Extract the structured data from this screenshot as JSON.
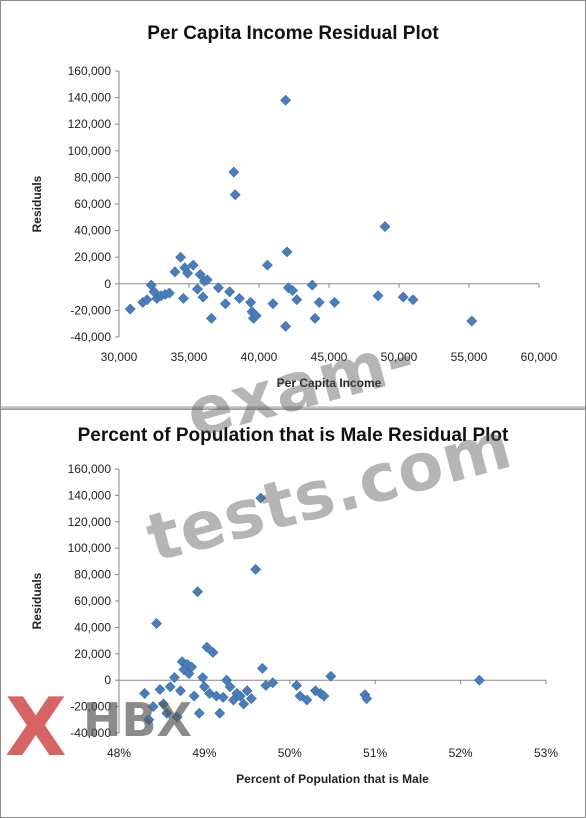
{
  "chart_data": [
    {
      "type": "scatter",
      "title": "Per Capita Income Residual Plot",
      "xlabel": "Per Capita Income",
      "ylabel": "Residuals",
      "xlim": [
        30000,
        60000
      ],
      "ylim": [
        -40000,
        160000
      ],
      "x_ticks": [
        "30,000",
        "35,000",
        "40,000",
        "45,000",
        "50,000",
        "55,000",
        "60,000"
      ],
      "y_ticks": [
        "160,000",
        "140,000",
        "120,000",
        "100,000",
        "80,000",
        "60,000",
        "40,000",
        "20,000",
        "0",
        "-20,000",
        "-40,000"
      ],
      "marker_color": "#4a7ebb",
      "grid": false,
      "points": [
        {
          "x": 30800,
          "y": -19000
        },
        {
          "x": 31700,
          "y": -14000
        },
        {
          "x": 32000,
          "y": -12000
        },
        {
          "x": 32300,
          "y": -1000
        },
        {
          "x": 32500,
          "y": -6000
        },
        {
          "x": 32700,
          "y": -11000
        },
        {
          "x": 33000,
          "y": -9000
        },
        {
          "x": 33300,
          "y": -8000
        },
        {
          "x": 33600,
          "y": -7000
        },
        {
          "x": 34000,
          "y": 9000
        },
        {
          "x": 34400,
          "y": 20000
        },
        {
          "x": 34600,
          "y": -11000
        },
        {
          "x": 34700,
          "y": 12000
        },
        {
          "x": 34900,
          "y": 8000
        },
        {
          "x": 35300,
          "y": 14000
        },
        {
          "x": 35600,
          "y": -4000
        },
        {
          "x": 35800,
          "y": 7000
        },
        {
          "x": 36000,
          "y": -10000
        },
        {
          "x": 36100,
          "y": 2000
        },
        {
          "x": 36300,
          "y": 3000
        },
        {
          "x": 36600,
          "y": -26000
        },
        {
          "x": 37100,
          "y": -3000
        },
        {
          "x": 37600,
          "y": -15000
        },
        {
          "x": 37900,
          "y": -6000
        },
        {
          "x": 38200,
          "y": 84000
        },
        {
          "x": 38300,
          "y": 67000
        },
        {
          "x": 38600,
          "y": -11000
        },
        {
          "x": 39400,
          "y": -14000
        },
        {
          "x": 39500,
          "y": -21000
        },
        {
          "x": 39600,
          "y": -26000
        },
        {
          "x": 39800,
          "y": -24000
        },
        {
          "x": 40600,
          "y": 14000
        },
        {
          "x": 41000,
          "y": -15000
        },
        {
          "x": 41900,
          "y": 138000
        },
        {
          "x": 42000,
          "y": 24000
        },
        {
          "x": 42100,
          "y": -3000
        },
        {
          "x": 41900,
          "y": -32000
        },
        {
          "x": 42400,
          "y": -5000
        },
        {
          "x": 42700,
          "y": -12000
        },
        {
          "x": 43800,
          "y": -1000
        },
        {
          "x": 44000,
          "y": -26000
        },
        {
          "x": 44300,
          "y": -14000
        },
        {
          "x": 45400,
          "y": -14000
        },
        {
          "x": 48500,
          "y": -9000
        },
        {
          "x": 49000,
          "y": 43000
        },
        {
          "x": 50300,
          "y": -10000
        },
        {
          "x": 51000,
          "y": -12000
        },
        {
          "x": 55200,
          "y": -28000
        }
      ]
    },
    {
      "type": "scatter",
      "title": "Percent of Population that is Male Residual Plot",
      "xlabel": "Percent of Population  that is Male",
      "ylabel": "Residuals",
      "xlim": [
        0.48,
        0.53
      ],
      "ylim": [
        -40000,
        160000
      ],
      "x_ticks": [
        "48%",
        "49%",
        "50%",
        "51%",
        "52%",
        "53%"
      ],
      "y_ticks": [
        "160,000",
        "140,000",
        "120,000",
        "100,000",
        "80,000",
        "60,000",
        "40,000",
        "20,000",
        "0",
        "-20,000",
        "-40,000"
      ],
      "marker_color": "#4a7ebb",
      "grid": false,
      "points": [
        {
          "x": 0.483,
          "y": -10000
        },
        {
          "x": 0.4835,
          "y": -30000
        },
        {
          "x": 0.484,
          "y": -20000
        },
        {
          "x": 0.4844,
          "y": 43000
        },
        {
          "x": 0.4848,
          "y": -7000
        },
        {
          "x": 0.4852,
          "y": -18000
        },
        {
          "x": 0.4856,
          "y": -25000
        },
        {
          "x": 0.486,
          "y": -5000
        },
        {
          "x": 0.4865,
          "y": 2000
        },
        {
          "x": 0.4868,
          "y": -28000
        },
        {
          "x": 0.4872,
          "y": -8000
        },
        {
          "x": 0.4874,
          "y": 14000
        },
        {
          "x": 0.4876,
          "y": 8000
        },
        {
          "x": 0.488,
          "y": 12000
        },
        {
          "x": 0.4882,
          "y": 5000
        },
        {
          "x": 0.4885,
          "y": 10000
        },
        {
          "x": 0.4888,
          "y": -12000
        },
        {
          "x": 0.4892,
          "y": 67000
        },
        {
          "x": 0.4894,
          "y": -25000
        },
        {
          "x": 0.4898,
          "y": 2000
        },
        {
          "x": 0.49,
          "y": -5000
        },
        {
          "x": 0.4903,
          "y": 25000
        },
        {
          "x": 0.4906,
          "y": -10000
        },
        {
          "x": 0.491,
          "y": 21000
        },
        {
          "x": 0.4914,
          "y": -12000
        },
        {
          "x": 0.4918,
          "y": -25000
        },
        {
          "x": 0.4922,
          "y": -13000
        },
        {
          "x": 0.4926,
          "y": 0
        },
        {
          "x": 0.493,
          "y": -5000
        },
        {
          "x": 0.4934,
          "y": -15000
        },
        {
          "x": 0.4938,
          "y": -10000
        },
        {
          "x": 0.4942,
          "y": -12000
        },
        {
          "x": 0.4946,
          "y": -18000
        },
        {
          "x": 0.495,
          "y": -8000
        },
        {
          "x": 0.4955,
          "y": -14000
        },
        {
          "x": 0.496,
          "y": 84000
        },
        {
          "x": 0.4966,
          "y": 138000
        },
        {
          "x": 0.4968,
          "y": 9000
        },
        {
          "x": 0.4972,
          "y": -4000
        },
        {
          "x": 0.498,
          "y": -2000
        },
        {
          "x": 0.5008,
          "y": -4000
        },
        {
          "x": 0.5012,
          "y": -12000
        },
        {
          "x": 0.502,
          "y": -15000
        },
        {
          "x": 0.503,
          "y": -8000
        },
        {
          "x": 0.5036,
          "y": -10000
        },
        {
          "x": 0.504,
          "y": -12000
        },
        {
          "x": 0.5048,
          "y": 3000
        },
        {
          "x": 0.5088,
          "y": -11000
        },
        {
          "x": 0.509,
          "y": -14000
        },
        {
          "x": 0.5222,
          "y": 0
        }
      ]
    }
  ],
  "watermark": "exam-tests.com",
  "logo": {
    "mark": "X",
    "text": "HBX"
  }
}
